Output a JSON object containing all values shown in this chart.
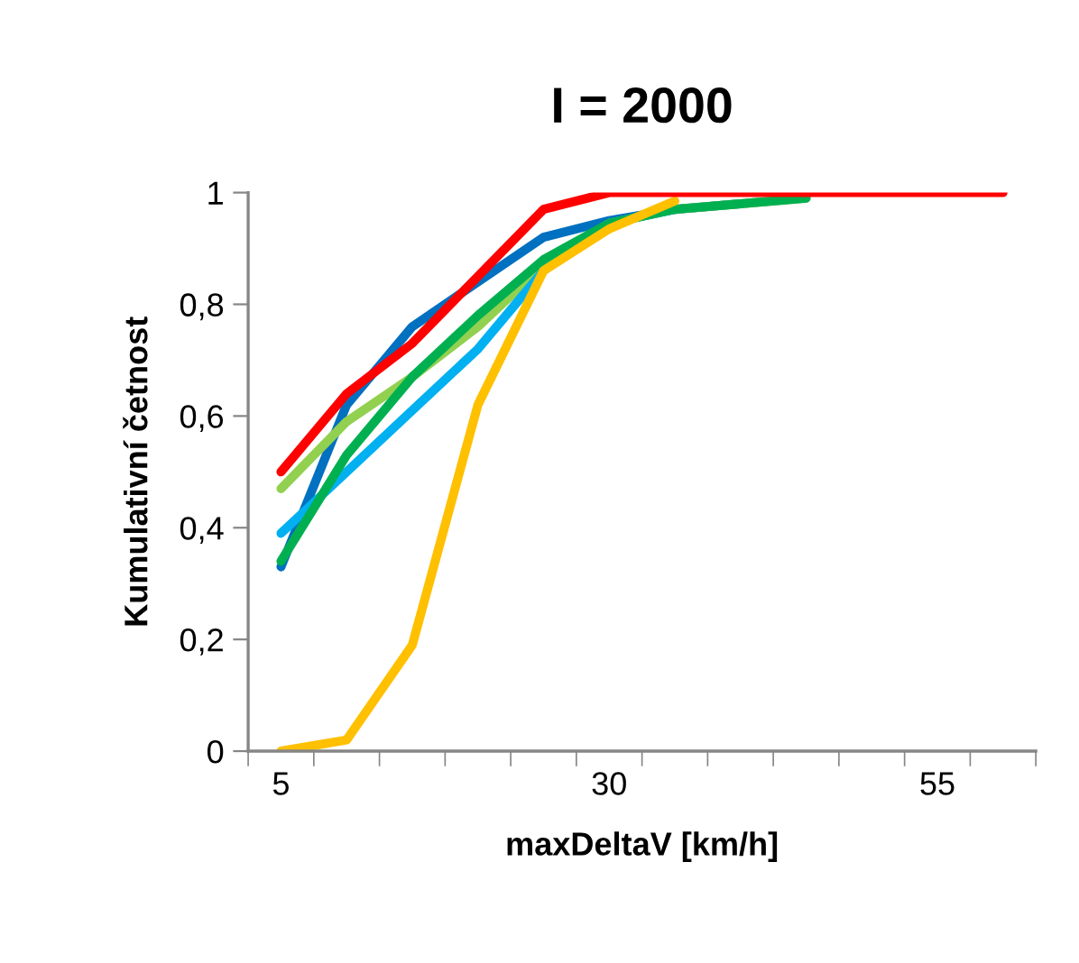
{
  "chart_data": {
    "type": "line",
    "title": "I = 2000",
    "xlabel": "maxDeltaV [km/h]",
    "ylabel": "Kumulativní četnost",
    "categories": [
      "5",
      null,
      null,
      null,
      null,
      "30",
      null,
      null,
      null,
      null,
      "55",
      null
    ],
    "ylim": [
      0,
      1
    ],
    "yticks": [
      0,
      {
        "value": 0.2,
        "label": "0,2"
      },
      {
        "value": 0.4,
        "label": "0,4"
      },
      {
        "value": 0.6,
        "label": "0,6"
      },
      {
        "value": 0.8,
        "label": "0,8"
      },
      1
    ],
    "grid": false,
    "legend": false,
    "marker": "none",
    "line_style": "solid",
    "series": [
      {
        "color": "#0070c0",
        "values": [
          0.33,
          0.62,
          0.76,
          0.84,
          0.92,
          0.95,
          0.97,
          0.98,
          null,
          null,
          null,
          null
        ]
      },
      {
        "color": "#92d050",
        "values": [
          0.47,
          0.59,
          0.67,
          0.76,
          0.87,
          0.945,
          0.97,
          0.98,
          0.99,
          null,
          null,
          null
        ]
      },
      {
        "color": "#00b0f0",
        "values": [
          0.39,
          0.5,
          0.61,
          0.72,
          0.86,
          0.945,
          0.97,
          null,
          null,
          null,
          null,
          null
        ]
      },
      {
        "color": "#00b050",
        "values": [
          0.34,
          0.53,
          0.67,
          0.78,
          0.88,
          0.945,
          0.97,
          0.98,
          0.99,
          null,
          null,
          null
        ]
      },
      {
        "color": "#ffc000",
        "values": [
          0,
          0.02,
          0.19,
          0.62,
          0.86,
          0.935,
          0.985,
          null,
          null,
          null,
          null,
          null
        ]
      },
      {
        "color": "#ff0000",
        "values": [
          0.5,
          0.64,
          0.73,
          0.85,
          0.97,
          1,
          1,
          1,
          1,
          1,
          1,
          1
        ]
      }
    ]
  }
}
